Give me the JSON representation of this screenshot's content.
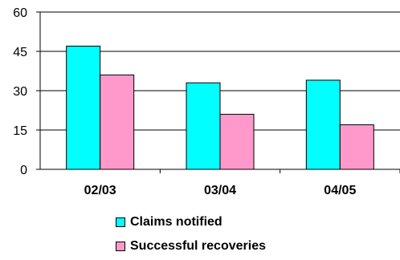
{
  "chart_data": {
    "type": "bar",
    "categories": [
      "02/03",
      "03/04",
      "04/05"
    ],
    "series": [
      {
        "name": "Claims notified",
        "values": [
          47,
          33,
          34
        ],
        "color": "#00FFFF"
      },
      {
        "name": "Successful recoveries",
        "values": [
          36,
          21,
          17
        ],
        "color": "#FF99CC"
      }
    ],
    "ylim": [
      0,
      60
    ],
    "yticks": [
      "0",
      "15",
      "30",
      "45",
      "60"
    ],
    "grid": "horizontal",
    "legend_placement": "bottom",
    "title": "",
    "xlabel": "",
    "ylabel": ""
  }
}
